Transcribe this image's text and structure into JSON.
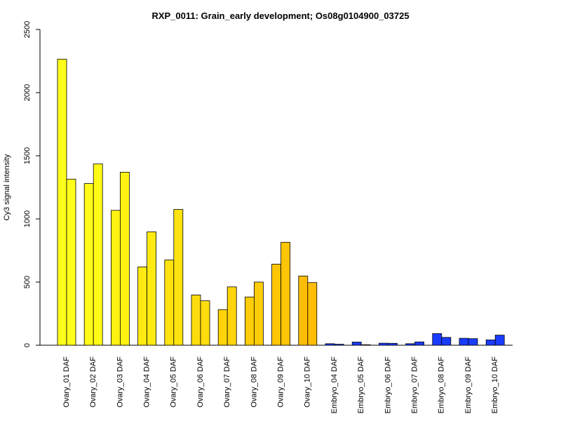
{
  "chart_data": {
    "type": "bar",
    "title": "RXP_0011: Grain_early development; Os08g0104900_03725",
    "xlabel": "",
    "ylabel": "Cy3 signal intensity",
    "ylim": [
      0,
      2500
    ],
    "yticks": [
      0,
      500,
      1000,
      1500,
      2000,
      2500
    ],
    "grid": false,
    "categories": [
      "Ovary_01 DAF",
      "Ovary_02 DAF",
      "Ovary_03 DAF",
      "Ovary_04 DAF",
      "Ovary_05 DAF",
      "Ovary_06 DAF",
      "Ovary_07 DAF",
      "Ovary_08 DAF",
      "Ovary_09 DAF",
      "Ovary_10 DAF",
      "Embryo_04 DAF",
      "Embryo_05 DAF",
      "Embryo_06 DAF",
      "Embryo_07 DAF",
      "Embryo_08 DAF",
      "Embryo_09 DAF",
      "Embryo_10 DAF"
    ],
    "series": [
      {
        "values": [
          2265,
          1280,
          1068,
          620,
          675,
          398,
          282,
          382,
          642,
          548,
          12,
          25,
          16,
          12,
          92,
          55,
          42
        ]
      },
      {
        "values": [
          1315,
          1435,
          1370,
          898,
          1075,
          352,
          462,
          500,
          815,
          496,
          8,
          4,
          15,
          26,
          62,
          52,
          80
        ]
      }
    ],
    "bar_colors": [
      "#FFFF1C",
      "#FFFA17",
      "#FFF213",
      "#FFEB11",
      "#FFE30F",
      "#FFDC0D",
      "#FFD40B",
      "#FFCD09",
      "#FFC507",
      "#FFBD05",
      "#1A3CFF",
      "#1A3CFF",
      "#1A3CFF",
      "#1A3CFF",
      "#1A3CFF",
      "#1A3CFF",
      "#1A3CFF"
    ]
  }
}
